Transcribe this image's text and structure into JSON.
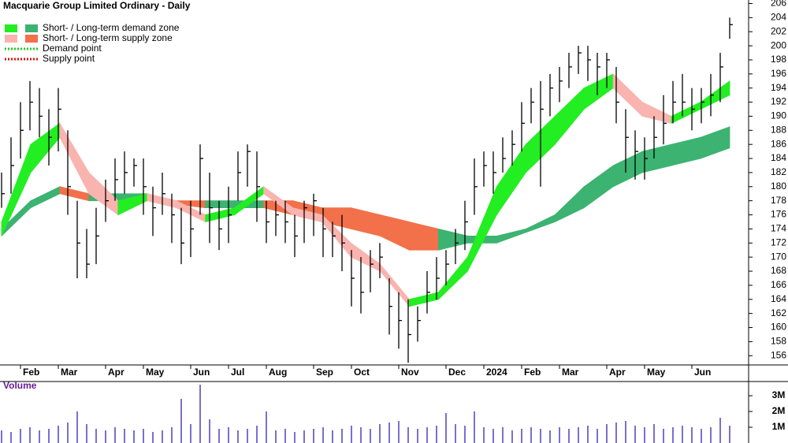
{
  "chart_data": [
    {
      "type": "hlc",
      "title": "Macquarie Group Limited Ordinary - Daily",
      "categories": [
        null,
        null,
        "Feb",
        null,
        null,
        null,
        "Mar",
        null,
        null,
        null,
        null,
        "Apr",
        null,
        null,
        null,
        "May",
        null,
        null,
        null,
        null,
        "Jun",
        null,
        null,
        null,
        "Jul",
        null,
        null,
        null,
        "Aug",
        null,
        null,
        null,
        null,
        "Sep",
        null,
        null,
        null,
        "Oct",
        null,
        null,
        null,
        null,
        "Nov",
        null,
        null,
        null,
        null,
        "Dec",
        null,
        null,
        null,
        "2024",
        null,
        null,
        null,
        "Feb",
        null,
        null,
        null,
        "Mar",
        null,
        null,
        null,
        null,
        "Apr",
        null,
        null,
        null,
        "May",
        null,
        null,
        null,
        null,
        "Jun",
        null,
        null,
        null,
        null
      ],
      "high": [
        182,
        187,
        192,
        195,
        194,
        191,
        194,
        188,
        178,
        174,
        177,
        181,
        184,
        185,
        184,
        184,
        180,
        182,
        179,
        177,
        178,
        186,
        182,
        178,
        180,
        185,
        186,
        185,
        178,
        178,
        178,
        176,
        178,
        179,
        177,
        175,
        176,
        171,
        170,
        171,
        172,
        167,
        165,
        164,
        163,
        168,
        170,
        171,
        174,
        178,
        184,
        185,
        185,
        187,
        188,
        192,
        194,
        195,
        196,
        197,
        199,
        200,
        200,
        199,
        199,
        197,
        191,
        188,
        187,
        190,
        193,
        195,
        196,
        194,
        194,
        196,
        199,
        204
      ],
      "low": [
        177,
        179,
        184,
        188,
        187,
        183,
        185,
        176,
        167,
        167,
        169,
        175,
        178,
        179,
        180,
        176,
        173,
        176,
        172,
        169,
        170,
        176,
        172,
        171,
        172,
        178,
        180,
        175,
        172,
        173,
        172,
        170,
        172,
        173,
        170,
        170,
        168,
        163,
        162,
        165,
        167,
        159,
        157,
        155,
        158,
        162,
        164,
        166,
        169,
        171,
        176,
        180,
        179,
        182,
        183,
        185,
        189,
        180,
        190,
        192,
        194,
        196,
        195,
        193,
        194,
        189,
        182,
        181,
        181,
        184,
        186,
        189,
        190,
        188,
        189,
        190,
        192,
        201
      ],
      "close": [
        179,
        183,
        188,
        192,
        190,
        187,
        191,
        180,
        172,
        169,
        173,
        178,
        181,
        182,
        183,
        180,
        177,
        179,
        176,
        172,
        174,
        184,
        177,
        174,
        176,
        182,
        185,
        180,
        175,
        176,
        175,
        173,
        177,
        178,
        174,
        173,
        172,
        167,
        165,
        169,
        170,
        163,
        161,
        159,
        161,
        165,
        167,
        169,
        172,
        175,
        180,
        183,
        182,
        184,
        186,
        189,
        192,
        191,
        194,
        195,
        197,
        199,
        198,
        197,
        198,
        192,
        187,
        185,
        184,
        187,
        189,
        192,
        192,
        191,
        192,
        193,
        197,
        203
      ],
      "color": "#000000",
      "bands": {
        "short": {
          "upper": [
            175,
            186,
            189,
            182,
            178,
            179,
            178,
            176,
            177,
            180,
            177,
            176,
            172,
            169,
            164,
            165,
            170,
            180,
            186,
            190,
            194,
            196,
            192,
            190,
            192,
            195
          ],
          "lower": [
            173,
            182,
            187,
            179,
            176,
            178,
            177,
            175,
            176,
            179,
            176,
            175,
            170,
            168,
            163,
            164,
            168,
            176,
            182,
            186,
            191,
            194,
            190,
            189,
            191,
            193
          ]
        },
        "long": {
          "upper": [
            174,
            178,
            180,
            179,
            179,
            179,
            178,
            178,
            178,
            178,
            178,
            177,
            177,
            176,
            175,
            174,
            173,
            173,
            174,
            176,
            180,
            183,
            185,
            186,
            187,
            188.5
          ],
          "lower": [
            173,
            177,
            179,
            178,
            178,
            178,
            177.5,
            177,
            177,
            177,
            176,
            175,
            174,
            173,
            171,
            171,
            172,
            172,
            173.5,
            175,
            177,
            180,
            182,
            183,
            184,
            185.5
          ]
        }
      },
      "legend": [
        {
          "name": "Short- / Long-term demand zone",
          "colors": [
            "#22ee22",
            "#3cb371"
          ]
        },
        {
          "name": "Short- / Long-term supply zone",
          "colors": [
            "#f9b4b0",
            "#f2704a"
          ]
        },
        {
          "name": "Demand point",
          "color": "#22cc22"
        },
        {
          "name": "Supply point",
          "color": "#dd1111"
        }
      ],
      "ylim": [
        154.8,
        206.5
      ],
      "yticks": [
        156,
        158,
        160,
        162,
        164,
        166,
        168,
        170,
        172,
        174,
        176,
        178,
        180,
        182,
        184,
        186,
        188,
        190,
        192,
        194,
        196,
        198,
        200,
        202,
        204,
        206
      ]
    },
    {
      "type": "volume",
      "title": "Volume",
      "values": [
        0.8,
        0.7,
        0.9,
        1.0,
        0.8,
        0.9,
        1.1,
        1.3,
        2.0,
        1.2,
        0.9,
        0.8,
        1.0,
        0.9,
        0.8,
        0.9,
        0.7,
        0.8,
        1.0,
        2.8,
        1.2,
        3.7,
        1.5,
        0.9,
        1.0,
        0.8,
        0.9,
        1.1,
        2.0,
        0.8,
        0.9,
        0.7,
        0.8,
        0.9,
        1.0,
        0.8,
        0.9,
        1.1,
        1.0,
        0.9,
        1.2,
        1.3,
        1.4,
        1.0,
        0.9,
        1.0,
        1.1,
        1.9,
        1.2,
        1.1,
        2.0,
        1.0,
        0.9,
        1.0,
        0.8,
        0.9,
        1.0,
        0.9,
        0.8,
        1.0,
        0.9,
        1.0,
        1.1,
        0.9,
        1.2,
        1.3,
        1.4,
        1.1,
        1.0,
        1.2,
        0.9,
        1.0,
        1.1,
        1.0,
        0.9,
        1.0,
        1.6,
        1.1
      ],
      "color": "#7b6fd0",
      "ylim": [
        0,
        3.85
      ],
      "yticks": [
        {
          "value": 1,
          "label": "1M"
        },
        {
          "value": 2,
          "label": "2M"
        },
        {
          "value": 3,
          "label": "3M"
        }
      ]
    }
  ]
}
